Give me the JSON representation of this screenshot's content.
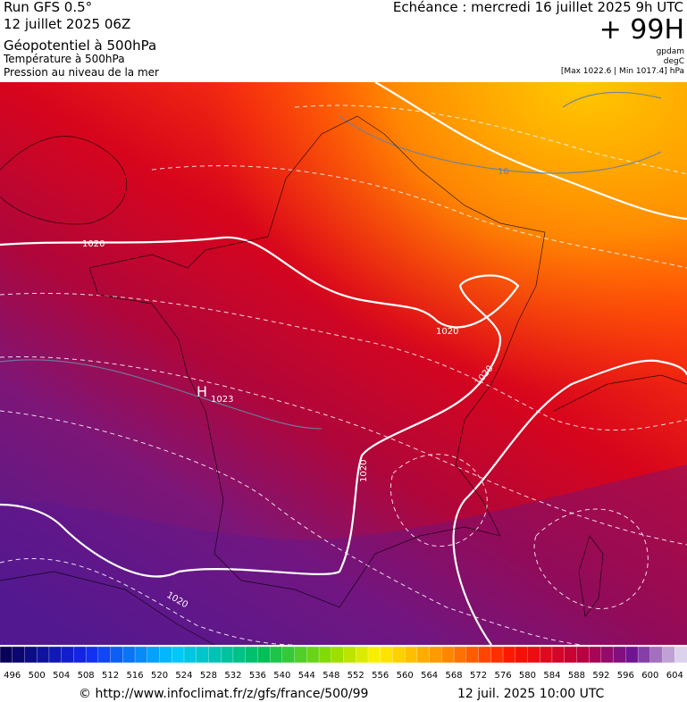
{
  "header": {
    "run": "Run GFS 0.5°",
    "run_date": "12 juillet 2025 06Z",
    "title": "Géopotentiel à 500hPa",
    "subtitle_1": "Température à 500hPa",
    "subtitle_2": "Pression au niveau de la mer",
    "forecast": "Echéance : mercredi 16 juillet 2025 9h UTC",
    "lead": "+ 99H",
    "unit_1": "gpdam",
    "unit_2": "degC",
    "range": "[Max 1022.6 | Min 1017.4] hPa"
  },
  "map_labels": {
    "isobar_1": "1020",
    "isobar_2": "1020",
    "isobar_3": "1020",
    "isobar_4": "1020",
    "isobar_5": "1020",
    "high": "H",
    "high_value": "1023",
    "isotherm": "16"
  },
  "colorbar": {
    "labels": [
      496,
      500,
      504,
      508,
      512,
      516,
      520,
      524,
      528,
      532,
      536,
      540,
      544,
      548,
      552,
      556,
      560,
      564,
      568,
      572,
      576,
      580,
      584,
      588,
      592,
      596,
      600,
      604
    ]
  },
  "footer": {
    "url": "© http://www.infoclimat.fr/z/gfs/france/500/99",
    "time": "12 juil. 2025 10:00 UTC"
  }
}
